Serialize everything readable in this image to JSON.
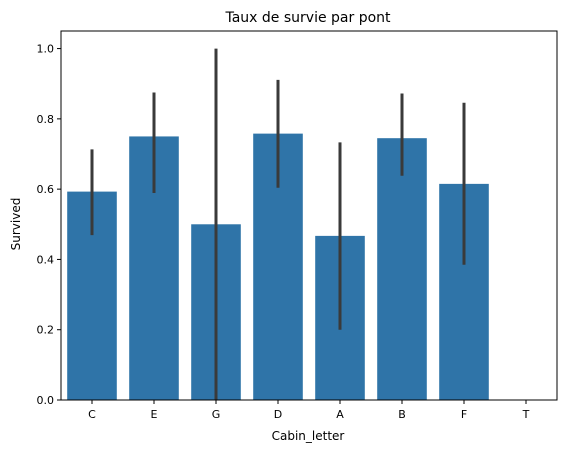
{
  "chart_data": {
    "type": "bar",
    "title": "Taux de survie par pont",
    "xlabel": "Cabin_letter",
    "ylabel": "Survived",
    "categories": [
      "C",
      "E",
      "G",
      "D",
      "A",
      "B",
      "F",
      "T"
    ],
    "values": [
      0.593,
      0.75,
      0.5,
      0.758,
      0.467,
      0.745,
      0.615,
      0.0
    ],
    "ci_low": [
      0.469,
      0.589,
      0.0,
      0.604,
      0.2,
      0.638,
      0.385,
      null
    ],
    "ci_high": [
      0.713,
      0.875,
      1.0,
      0.911,
      0.733,
      0.872,
      0.846,
      null
    ],
    "ylim": [
      0,
      1.05
    ],
    "yticks": [
      0.0,
      0.2,
      0.4,
      0.6,
      0.8,
      1.0
    ],
    "ytick_labels": [
      "0.0",
      "0.2",
      "0.4",
      "0.6",
      "0.8",
      "1.0"
    ],
    "grid": false,
    "colors": {
      "bar": "#2f74a8",
      "errorbar": "#3a3a3a"
    }
  }
}
